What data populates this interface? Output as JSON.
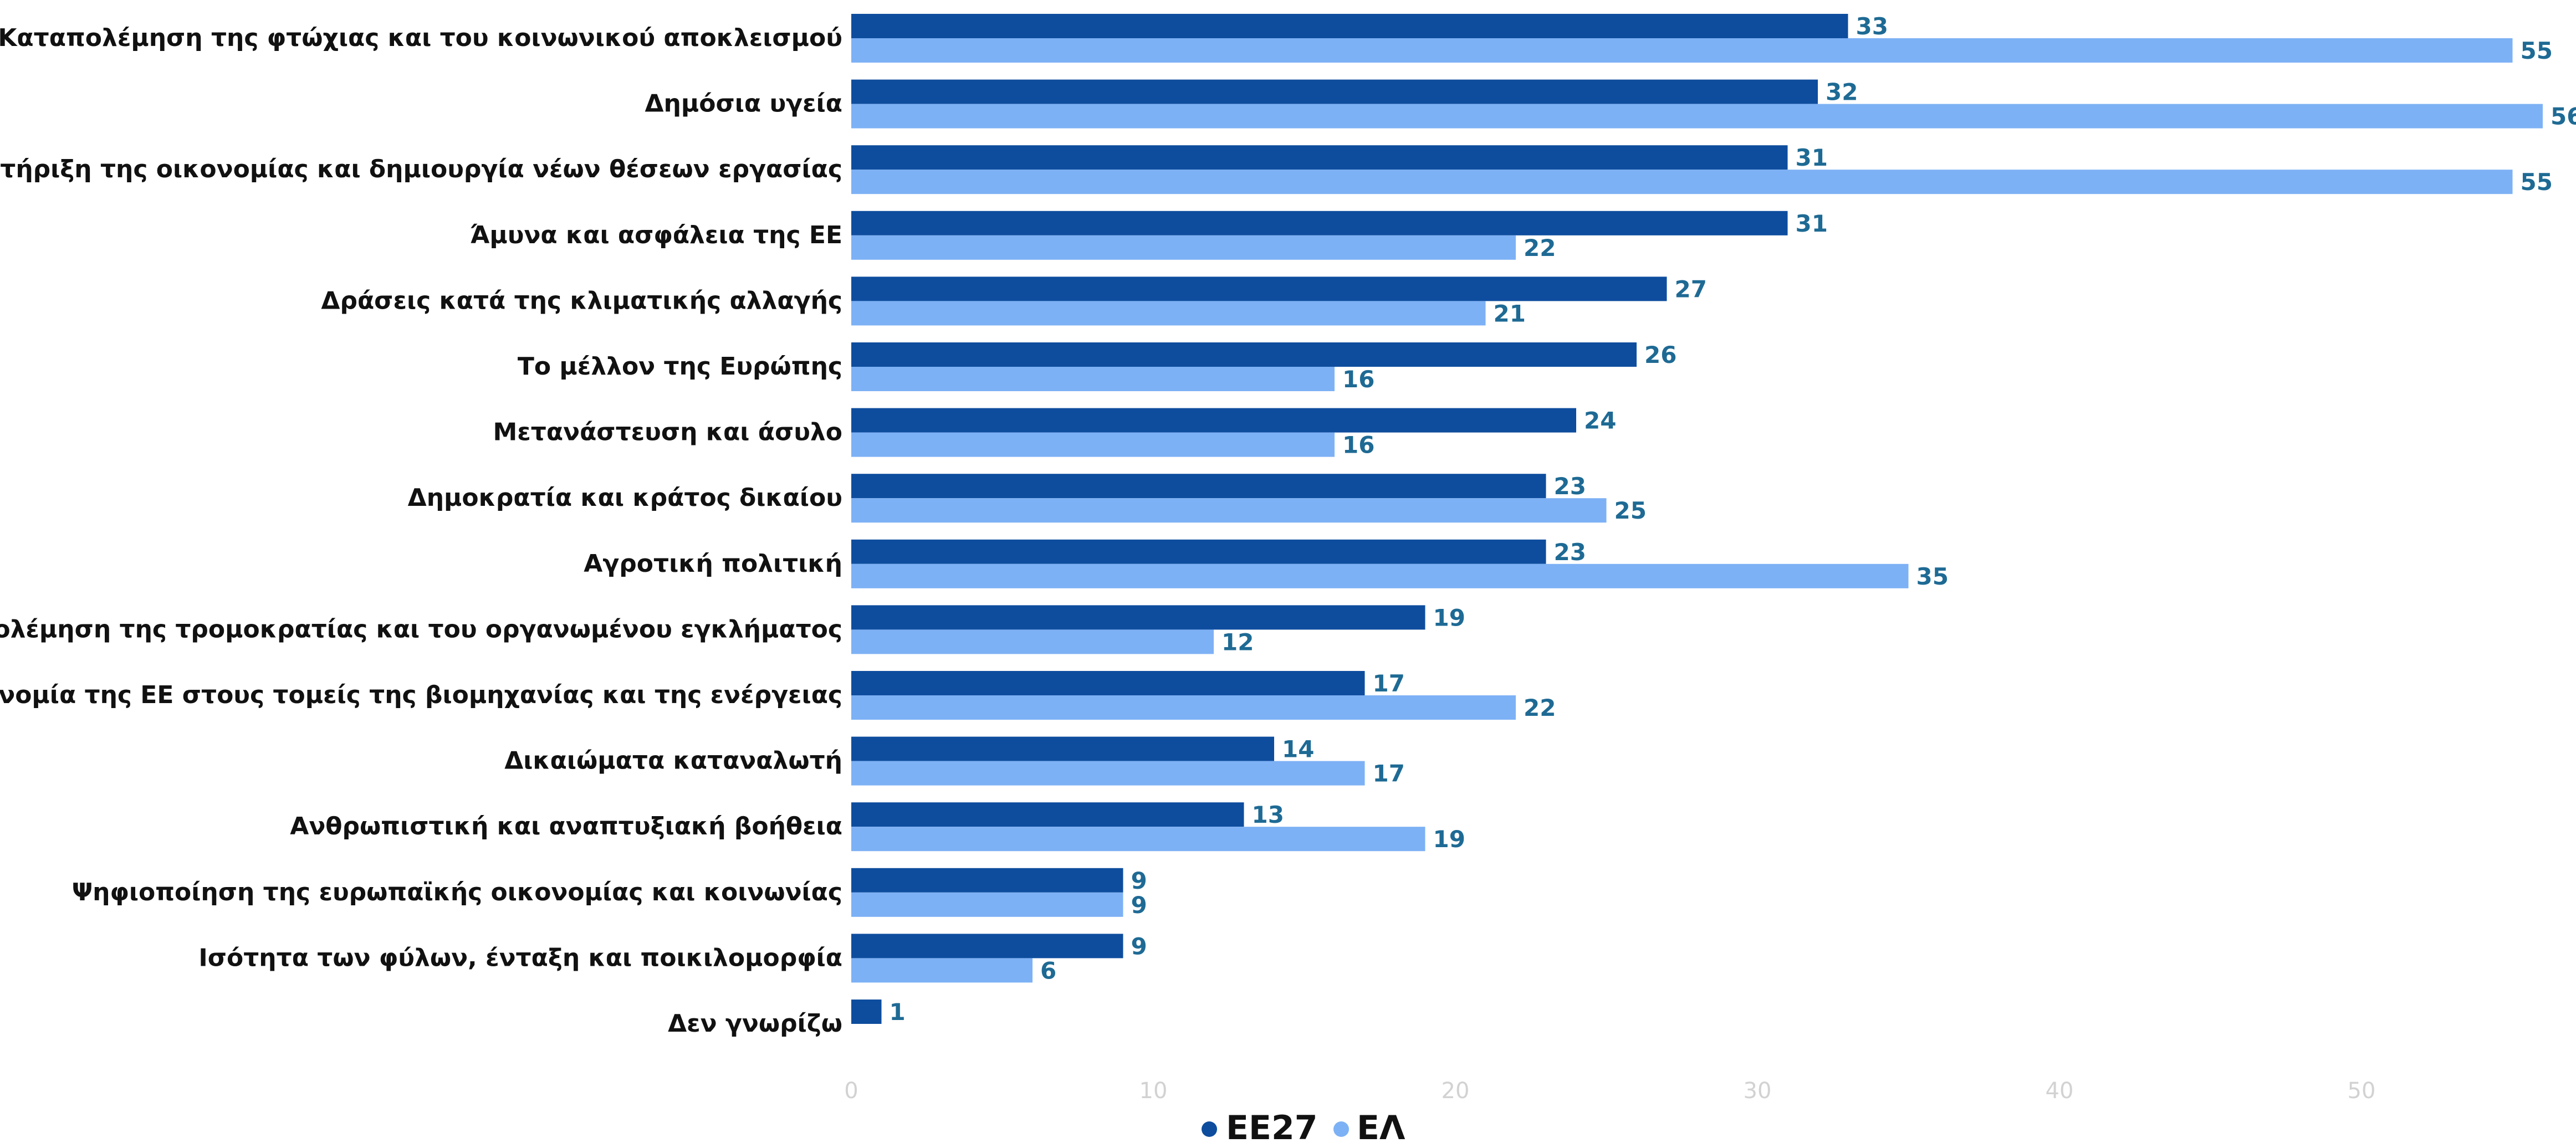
{
  "chart_data": {
    "type": "bar",
    "orientation": "horizontal",
    "categories": [
      "Καταπολέμηση της φτώχιας και του κοινωνικού αποκλεισμού",
      "Δημόσια υγεία",
      "Υποστήριξη της οικονομίας και δημιουργία νέων θέσεων εργασίας",
      "Άμυνα και ασφάλεια της ΕΕ",
      "Δράσεις κατά της κλιματικής αλλαγής",
      "Το μέλλον της Ευρώπης",
      "Μετανάστευση και άσυλο",
      "Δημοκρατία και κράτος δικαίου",
      "Αγροτική πολιτική",
      "Καταπολέμηση της τρομοκρατίας και του οργανωμένου εγκλήματος",
      "Αυτονομία της ΕΕ στους τομείς της βιομηχανίας και της ενέργειας",
      "Δικαιώματα καταναλωτή",
      "Ανθρωπιστική και αναπτυξιακή βοήθεια",
      "Ψηφιοποίηση της ευρωπαϊκής οικονομίας και κοινωνίας",
      "Ισότητα των φύλων, ένταξη και ποικιλομορφία",
      "Δεν γνωρίζω"
    ],
    "series": [
      {
        "name": "ΕΕ27",
        "color": "#0e4d9e",
        "values": [
          33,
          32,
          31,
          31,
          27,
          26,
          24,
          23,
          23,
          19,
          17,
          14,
          13,
          9,
          9,
          1
        ]
      },
      {
        "name": "ΕΛ",
        "color": "#7db1f5",
        "values": [
          55,
          56,
          55,
          22,
          21,
          16,
          16,
          25,
          35,
          12,
          22,
          17,
          19,
          9,
          6,
          null
        ]
      }
    ],
    "x_ticks": [
      0,
      10,
      20,
      30,
      40,
      50
    ],
    "xlim": [
      0,
      56
    ],
    "grid": false,
    "legend_position": "bottom-center",
    "title": "",
    "xlabel": "",
    "ylabel": ""
  }
}
